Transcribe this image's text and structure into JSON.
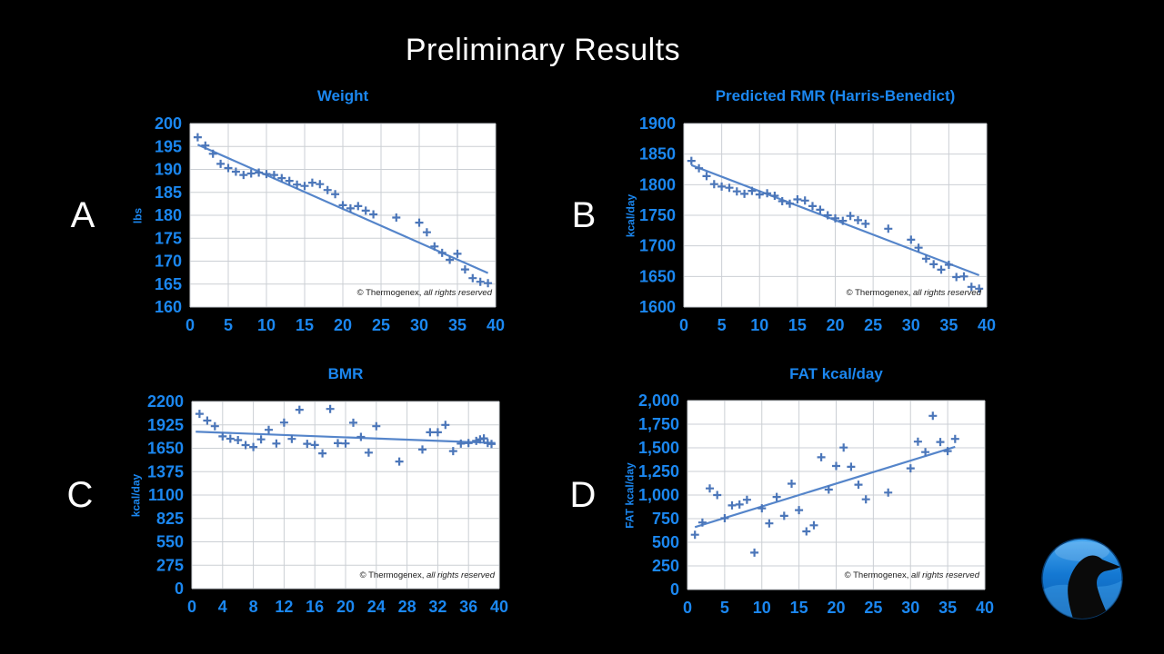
{
  "slide": {
    "title": "Preliminary Results"
  },
  "watermark": {
    "text": "© Thermogenex,",
    "italic_text": " all rights reserved"
  },
  "logo": {
    "name": "thermogenex-penguin-logo"
  },
  "colors": {
    "background": "#000000",
    "accent": "#1b87f0",
    "marker": "#4b76b9",
    "trend": "#5585ca",
    "grid": "#cbcfd4",
    "plot_bg": "#ffffff",
    "title": "#ffffff",
    "watermark": "#1b1b1b",
    "logo_blue_light": "#45a6f0",
    "logo_blue_dark": "#0b5bab"
  },
  "chart_data": [
    {
      "type": "scatter",
      "panel_label": "A",
      "title": "Weight",
      "xlabel": "",
      "ylabel": "lbs",
      "xlim": [
        0,
        40
      ],
      "ylim": [
        160,
        200
      ],
      "xticks": [
        0,
        5,
        10,
        15,
        20,
        25,
        30,
        35,
        40
      ],
      "xtick_labels": [
        "0",
        "5",
        "10",
        "15",
        "20",
        "25",
        "30",
        "35",
        "40"
      ],
      "yticks": [
        160,
        165,
        170,
        175,
        180,
        185,
        190,
        195,
        200
      ],
      "ytick_labels": [
        "160",
        "165",
        "170",
        "175",
        "180",
        "185",
        "190",
        "195",
        "200"
      ],
      "grid": true,
      "marker": "plus",
      "x": [
        1,
        2,
        3,
        4,
        5,
        6,
        7,
        8,
        9,
        10,
        11,
        12,
        13,
        14,
        15,
        16,
        17,
        18,
        19,
        20,
        21,
        22,
        23,
        24,
        27,
        30,
        31,
        32,
        33,
        34,
        35,
        36,
        37,
        38,
        39
      ],
      "y": [
        197,
        195.2,
        193.4,
        191.2,
        190.3,
        189.5,
        188.8,
        189.1,
        189.3,
        189,
        188.8,
        188.1,
        187.5,
        186.7,
        186.4,
        187.1,
        186.8,
        185.5,
        184.6,
        182.2,
        181.5,
        182,
        181,
        180.2,
        179.5,
        178.4,
        176.3,
        173.2,
        171.8,
        170.3,
        171.6,
        168.2,
        166.3,
        165.5,
        165.2
      ],
      "trend": {
        "x": [
          1,
          39
        ],
        "y": [
          195.4,
          167.4
        ]
      }
    },
    {
      "type": "scatter",
      "panel_label": "B",
      "title": "Predicted RMR (Harris-Benedict)",
      "xlabel": "",
      "ylabel": "kcal/day",
      "xlim": [
        0,
        40
      ],
      "ylim": [
        1600,
        1900
      ],
      "xticks": [
        0,
        5,
        10,
        15,
        20,
        25,
        30,
        35,
        40
      ],
      "xtick_labels": [
        "0",
        "5",
        "10",
        "15",
        "20",
        "25",
        "30",
        "35",
        "40"
      ],
      "yticks": [
        1600,
        1650,
        1700,
        1750,
        1800,
        1850,
        1900
      ],
      "ytick_labels": [
        "1600",
        "1650",
        "1700",
        "1750",
        "1800",
        "1850",
        "1900"
      ],
      "grid": true,
      "marker": "plus",
      "x": [
        1,
        2,
        3,
        4,
        5,
        6,
        7,
        8,
        9,
        10,
        11,
        12,
        13,
        14,
        15,
        16,
        17,
        18,
        19,
        20,
        21,
        22,
        23,
        24,
        27,
        30,
        31,
        32,
        33,
        34,
        35,
        36,
        37,
        38,
        39
      ],
      "y": [
        1839,
        1827,
        1814,
        1801,
        1797,
        1795,
        1789,
        1785,
        1790,
        1784,
        1786,
        1782,
        1773,
        1769,
        1776,
        1774,
        1765,
        1759,
        1750,
        1745,
        1741,
        1749,
        1742,
        1736,
        1728,
        1710,
        1697,
        1679,
        1670,
        1661,
        1669,
        1649,
        1650,
        1633,
        1630
      ],
      "trend": {
        "x": [
          1,
          39
        ],
        "y": [
          1832,
          1652
        ]
      }
    },
    {
      "type": "scatter",
      "panel_label": "C",
      "title": "BMR",
      "xlabel": "",
      "ylabel": "kcal/day",
      "xlim": [
        0,
        40
      ],
      "ylim": [
        0,
        2200
      ],
      "xticks": [
        0,
        4,
        8,
        12,
        16,
        20,
        24,
        28,
        32,
        36,
        40
      ],
      "xtick_labels": [
        "0",
        "4",
        "8",
        "12",
        "16",
        "20",
        "24",
        "28",
        "32",
        "36",
        "40"
      ],
      "yticks": [
        0,
        275,
        550,
        825,
        1100,
        1375,
        1650,
        1925,
        2200
      ],
      "ytick_labels": [
        "0",
        "275",
        "550",
        "825",
        "1100",
        "1375",
        "1650",
        "1925",
        "2200"
      ],
      "grid": true,
      "marker": "plus",
      "x": [
        1,
        2,
        3,
        4,
        5,
        6,
        7,
        8,
        9,
        10,
        11,
        12,
        13,
        14,
        15,
        16,
        17,
        18,
        19,
        20,
        21,
        22,
        23,
        24,
        27,
        30,
        31,
        32,
        33,
        34,
        35,
        36,
        37,
        37.5,
        38,
        38.5,
        39
      ],
      "y": [
        2055,
        1976,
        1910,
        1790,
        1762,
        1746,
        1687,
        1665,
        1755,
        1867,
        1706,
        1952,
        1760,
        2103,
        1702,
        1688,
        1590,
        2112,
        1710,
        1707,
        1950,
        1784,
        1599,
        1910,
        1494,
        1635,
        1838,
        1838,
        1925,
        1617,
        1704,
        1711,
        1737,
        1755,
        1766,
        1711,
        1700
      ],
      "trend": {
        "x": [
          0.5,
          39.5
        ],
        "y": [
          1845,
          1712
        ]
      }
    },
    {
      "type": "scatter",
      "panel_label": "D",
      "title": "FAT kcal/day",
      "xlabel": "",
      "ylabel": "FAT kcal/day",
      "xlim": [
        0,
        40
      ],
      "ylim": [
        0,
        2000
      ],
      "xticks": [
        0,
        5,
        10,
        15,
        20,
        25,
        30,
        35,
        40
      ],
      "xtick_labels": [
        "0",
        "5",
        "10",
        "15",
        "20",
        "25",
        "30",
        "35",
        "40"
      ],
      "yticks": [
        0,
        250,
        500,
        750,
        1000,
        1250,
        1500,
        1750,
        2000
      ],
      "ytick_labels": [
        "0",
        "250",
        "500",
        "750",
        "1,000",
        "1,250",
        "1,500",
        "1,750",
        "2,000"
      ],
      "grid": true,
      "marker": "plus",
      "x": [
        1,
        2,
        3,
        4,
        5,
        6,
        7,
        8,
        9,
        10,
        11,
        12,
        13,
        14,
        15,
        16,
        17,
        18,
        19,
        20,
        21,
        22,
        23,
        24,
        27,
        30,
        31,
        32,
        33,
        34,
        35,
        36
      ],
      "y": [
        580,
        710,
        1070,
        1000,
        755,
        890,
        900,
        950,
        390,
        860,
        700,
        980,
        780,
        1120,
        840,
        615,
        680,
        1400,
        1058,
        1308,
        1503,
        1299,
        1110,
        955,
        1026,
        1283,
        1565,
        1455,
        1838,
        1562,
        1465,
        1594
      ],
      "trend": {
        "x": [
          1,
          36
        ],
        "y": [
          660,
          1510
        ]
      }
    }
  ]
}
